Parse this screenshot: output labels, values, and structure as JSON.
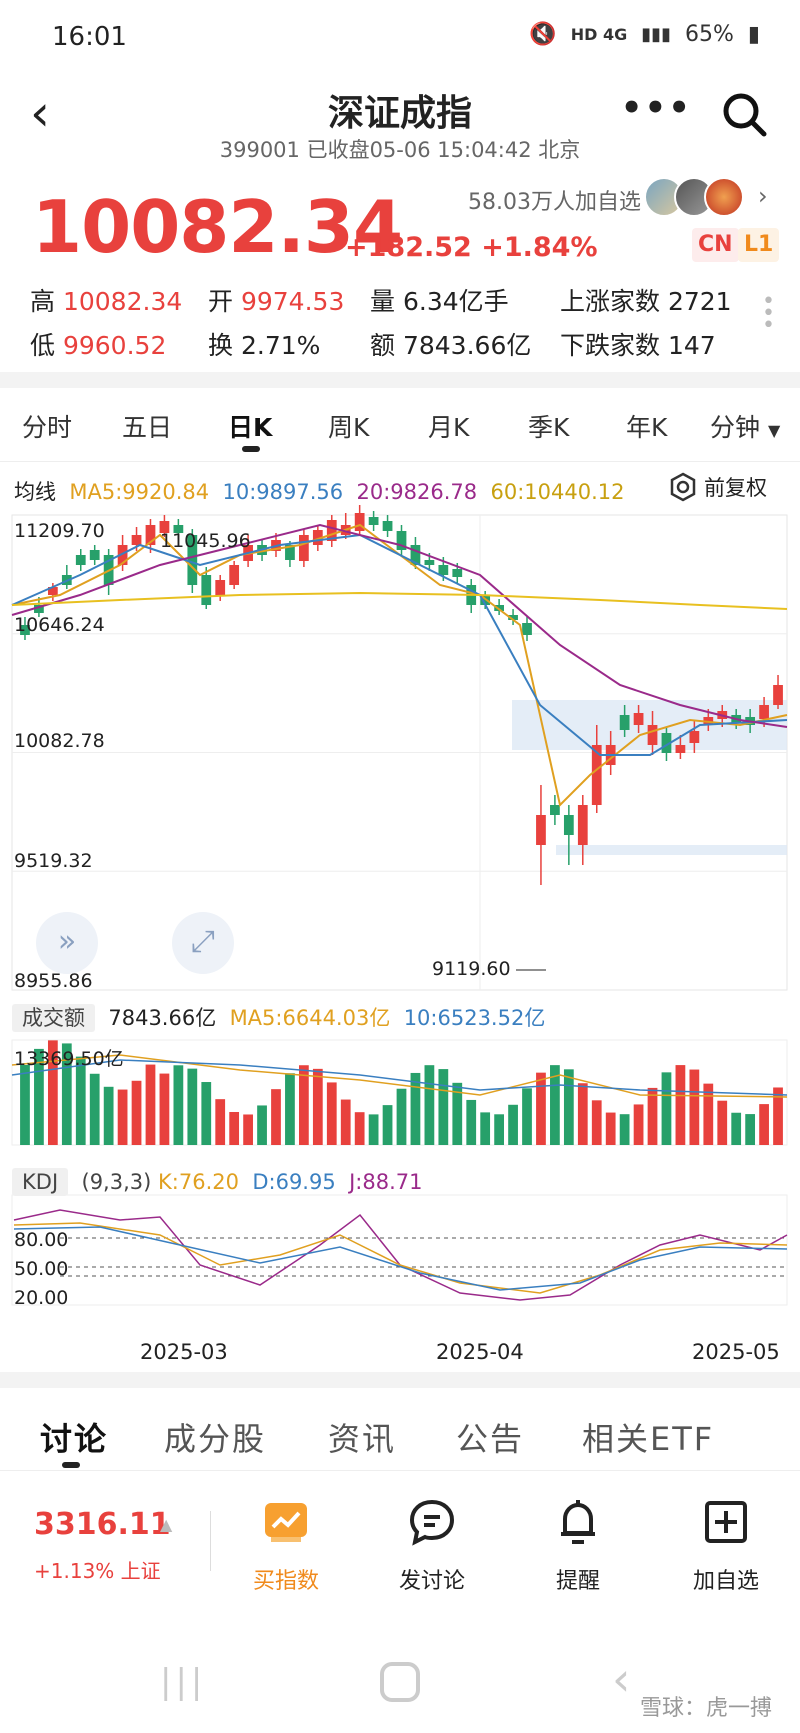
{
  "status": {
    "time": "16:01",
    "network": "HD 4G",
    "battery": "65%"
  },
  "header": {
    "title": "深证成指",
    "subtitle": "399001 已收盘05-06 15:04:42 北京"
  },
  "quote": {
    "price": "10082.34",
    "change": "+182.52 +1.84%",
    "followers": "58.03万人加自选",
    "badges": [
      "CN",
      "L1"
    ],
    "stats": {
      "high_label": "高",
      "high": "10082.34",
      "low_label": "低",
      "low": "9960.52",
      "open_label": "开",
      "open": "9974.53",
      "turnover_label": "换",
      "turnover": "2.71%",
      "volume_label": "量",
      "volume": "6.34亿手",
      "amount_label": "额",
      "amount": "7843.66亿",
      "up_label": "上涨家数",
      "up": "2721",
      "down_label": "下跌家数",
      "down": "147"
    }
  },
  "period_tabs": [
    "分时",
    "五日",
    "日K",
    "周K",
    "月K",
    "季K",
    "年K",
    "分钟"
  ],
  "active_period": "日K",
  "ma": {
    "label": "均线",
    "ma5": "MA5:9920.84",
    "ma10": "10:9897.56",
    "ma20": "20:9826.78",
    "ma60": "60:10440.12",
    "adjust": "前复权",
    "colors": {
      "ma5": "#e0a020",
      "ma10": "#3a7fc0",
      "ma20": "#9a2a8a",
      "ma60": "#e8c020"
    }
  },
  "price_axis": [
    "11209.70",
    "10646.24",
    "10082.78",
    "9519.32",
    "8955.86"
  ],
  "annotations": {
    "max": "11045.96",
    "min": "9119.60"
  },
  "volume": {
    "label": "成交额",
    "value": "7843.66亿",
    "ma5": "MA5:6644.03亿",
    "ma10": "10:6523.52亿",
    "axis_max": "13369.50亿"
  },
  "kdj": {
    "label": "KDJ",
    "params": "(9,3,3)",
    "k": "K:76.20",
    "d": "D:69.95",
    "j": "J:88.71",
    "levels": [
      "80.00",
      "50.00",
      "20.00"
    ]
  },
  "dates": [
    "2025-03",
    "2025-04",
    "2025-05"
  ],
  "bottom_tabs": [
    "讨论",
    "成分股",
    "资讯",
    "公告",
    "相关ETF"
  ],
  "bottom_bar": {
    "index_value": "3316.11",
    "index_change": "+1.13% 上证",
    "actions": [
      "买指数",
      "发讨论",
      "提醒",
      "加自选"
    ]
  },
  "watermark": "雪球：虎一搏",
  "colors": {
    "up": "#e8413d",
    "down": "#27a06a",
    "accent": "#f08a1c"
  }
}
